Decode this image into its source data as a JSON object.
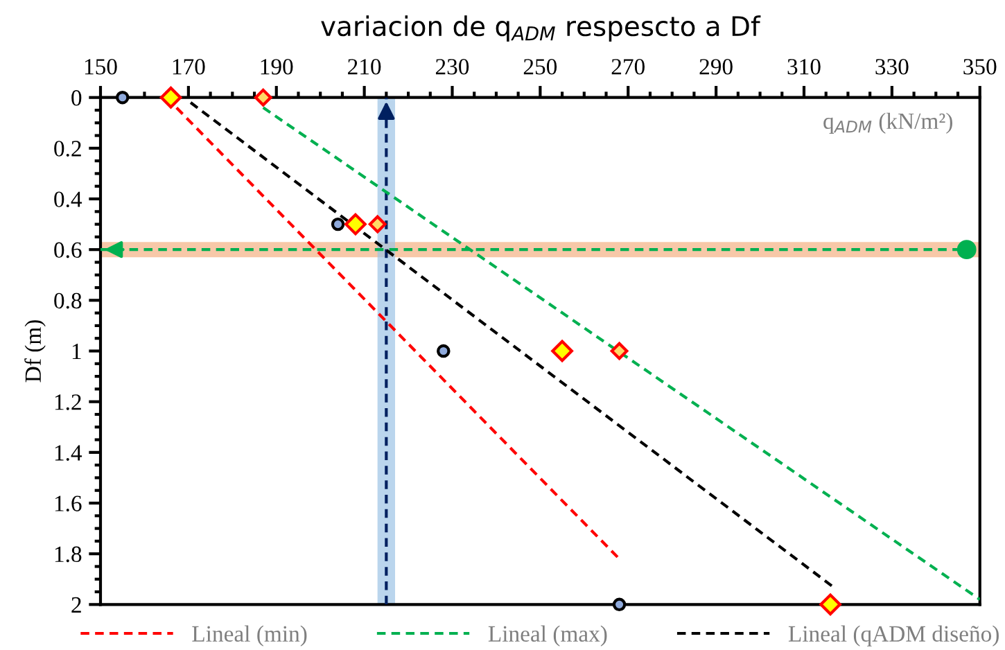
{
  "chart_data": {
    "type": "scatter",
    "title": "variacion de q$_{ADM}$ respescto a Df",
    "xlabel": "q$_{ADM}$ (kN/m²)",
    "ylabel": "Df (m)",
    "xlim": [
      150,
      350
    ],
    "xticks": [
      150,
      170,
      190,
      210,
      230,
      250,
      270,
      290,
      310,
      330,
      350
    ],
    "ylim": [
      2,
      0
    ],
    "yticks": [
      0,
      0.2,
      0.4,
      0.6,
      0.8,
      1,
      1.2,
      1.4,
      1.6,
      1.8,
      2
    ],
    "grid": false,
    "legend": "bottom",
    "series": [
      {
        "marker": "circle",
        "color": "#8faadc",
        "x": [
          155,
          204,
          228,
          268
        ],
        "values": [
          0,
          0.5,
          1,
          2
        ]
      },
      {
        "marker": "diamond",
        "color": "#ffff00",
        "x": [
          166,
          208,
          255,
          316
        ],
        "values": [
          0,
          0.5,
          1,
          2
        ]
      },
      {
        "marker": "diamond",
        "color": "#ffd966",
        "x": [
          187,
          213,
          268
        ],
        "values": [
          0,
          0.5,
          1
        ]
      },
      {
        "type": "line",
        "name": "Lineal (min)",
        "color": "#ff0000",
        "line_style": "dashed",
        "x": [
          165,
          268
        ],
        "values": [
          0,
          1.82
        ]
      },
      {
        "type": "line",
        "name": "Lineal (max)",
        "color": "#00b050",
        "line_style": "dashed",
        "x": [
          187,
          350
        ],
        "values": [
          0.04,
          1.98
        ]
      },
      {
        "type": "line",
        "name": "Lineal (qADM diseño)",
        "color": "#000000",
        "line_style": "dashed",
        "x": [
          170.5,
          316.6
        ],
        "values": [
          0.02,
          1.93
        ]
      }
    ],
    "bands": [
      {
        "axis": "y",
        "from": 0.57,
        "to": 0.63,
        "color": "#f4b183"
      },
      {
        "axis": "x",
        "from": 213,
        "to": 217,
        "color": "#9dc3e6"
      }
    ],
    "ref_lines": [
      {
        "axis": "y",
        "value": 0.6,
        "color": "#00b050",
        "line_style": "dashed"
      },
      {
        "axis": "x",
        "value": 215,
        "color": "#002060",
        "line_style": "dashed"
      }
    ]
  }
}
